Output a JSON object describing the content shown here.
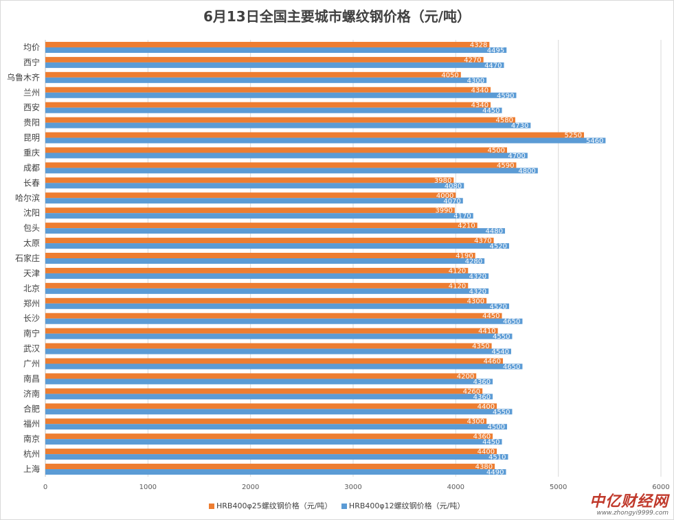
{
  "chart_data": {
    "type": "bar",
    "orientation": "horizontal",
    "title": "6月13日全国主要城市螺纹钢价格（元/吨）",
    "categories": [
      "均价",
      "西宁",
      "乌鲁木齐",
      "兰州",
      "西安",
      "贵阳",
      "昆明",
      "重庆",
      "成都",
      "长春",
      "哈尔滨",
      "沈阳",
      "包头",
      "太原",
      "石家庄",
      "天津",
      "北京",
      "郑州",
      "长沙",
      "南宁",
      "武汉",
      "广州",
      "南昌",
      "济南",
      "合肥",
      "福州",
      "南京",
      "杭州",
      "上海"
    ],
    "series": [
      {
        "name": "HRB400φ25螺纹钢价格（元/吨）",
        "color": "#ed7d31",
        "values": [
          4328,
          4270,
          4050,
          4340,
          4340,
          4580,
          5250,
          4500,
          4590,
          3980,
          4000,
          3990,
          4210,
          4370,
          4190,
          4120,
          4120,
          4300,
          4450,
          4410,
          4350,
          4460,
          4200,
          4260,
          4400,
          4300,
          4360,
          4400,
          4380
        ]
      },
      {
        "name": "HRB400φ12螺纹钢价格（元/吨）",
        "color": "#5b9bd5",
        "values": [
          4495,
          4470,
          4300,
          4590,
          4450,
          4730,
          5460,
          4700,
          4800,
          4080,
          4070,
          4170,
          4480,
          4520,
          4280,
          4320,
          4320,
          4520,
          4650,
          4550,
          4540,
          4650,
          4360,
          4360,
          4550,
          4500,
          4450,
          4510,
          4490
        ]
      }
    ],
    "xlim": [
      0,
      6000
    ],
    "xticks": [
      0,
      1000,
      2000,
      3000,
      4000,
      5000,
      6000
    ],
    "grid": true,
    "legend_position": "bottom"
  },
  "watermark": {
    "brand": "中亿财经网",
    "url": "www.zhongyi9999.com"
  }
}
